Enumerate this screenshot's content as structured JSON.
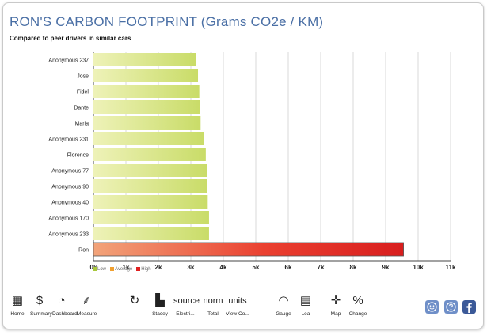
{
  "title": "RON'S CARBON FOOTPRINT (Grams CO2e / KM)",
  "subtitle": "Compared to peer drivers in similar cars",
  "chart_data": {
    "type": "bar",
    "orientation": "horizontal",
    "categories": [
      "Anonymous 237",
      "Jose",
      "Fidel",
      "Dante",
      "Maria",
      "Anonymous 231",
      "Florence",
      "Anonymous 77",
      "Anonymous 90",
      "Anonymous 40",
      "Anonymous 170",
      "Anonymous 233",
      "Ron"
    ],
    "values": [
      3150,
      3220,
      3260,
      3280,
      3300,
      3400,
      3460,
      3490,
      3500,
      3520,
      3560,
      3560,
      9550
    ],
    "xlim": [
      0,
      11000
    ],
    "ticks": [
      "0k",
      "1k",
      "2k",
      "3k",
      "4k",
      "5k",
      "6k",
      "7k",
      "8k",
      "9k",
      "10k",
      "11k"
    ],
    "grid": true,
    "legend": [
      {
        "label": "Low",
        "color": "#a8c83c"
      },
      {
        "label": "Average",
        "color": "#f0a030"
      },
      {
        "label": "High",
        "color": "#e02020"
      }
    ],
    "legend_position": "bottom-left"
  },
  "toolbar": {
    "items": [
      {
        "name": "home",
        "label": "Home",
        "icon": "grid-icon",
        "glyph": "▦"
      },
      {
        "name": "summary",
        "label": "Summary",
        "icon": "summary-icon",
        "glyph": "$"
      },
      {
        "name": "dashboard",
        "label": "Dashboard",
        "icon": "dashboard-icon",
        "glyph": "◔"
      },
      {
        "name": "measure",
        "label": "Measure",
        "icon": "footprint-icon",
        "glyph": "⸙"
      },
      {
        "name": "history",
        "label": "",
        "icon": "history-icon",
        "glyph": "↻"
      },
      {
        "name": "stacey",
        "label": "Stacey",
        "icon": "building-icon",
        "glyph": "▙"
      },
      {
        "name": "source",
        "word": "source",
        "label": "Electri..."
      },
      {
        "name": "norm",
        "word": "norm",
        "label": "Total"
      },
      {
        "name": "units",
        "word": "units",
        "label": "View Co..."
      },
      {
        "name": "gauge",
        "label": "Gauge",
        "icon": "gauge-icon",
        "glyph": "◠"
      },
      {
        "name": "leaderboard",
        "label": "Lea",
        "icon": "leaderboard-icon",
        "glyph": "▤"
      },
      {
        "name": "map",
        "label": "Map",
        "icon": "map-icon",
        "glyph": "✛"
      },
      {
        "name": "change",
        "label": "Change",
        "icon": "percent-icon",
        "glyph": "%"
      }
    ]
  }
}
